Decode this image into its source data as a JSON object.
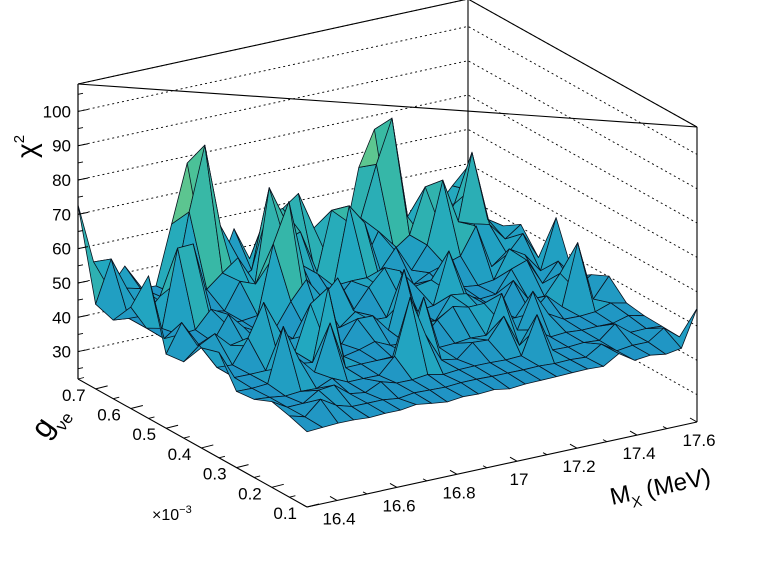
{
  "chart_data": {
    "type": "surface3d",
    "title": "",
    "colormap": [
      "#1f4fb8",
      "#1f86c8",
      "#22a8c0",
      "#3ebd9e",
      "#7fcf80",
      "#c0dc6a"
    ],
    "x_axis": {
      "label": "M",
      "label_sub": "X",
      "label_unit": "(MeV)",
      "range": [
        16.3,
        17.6
      ],
      "ticks": [
        16.4,
        16.6,
        16.8,
        17,
        17.2,
        17.4,
        17.6
      ],
      "tick_labels": [
        "16.4",
        "16.6",
        "16.8",
        "17",
        "17.2",
        "17.4",
        "17.6"
      ]
    },
    "y_axis": {
      "label": "g",
      "label_sub": "νe",
      "range": [
        0.1,
        0.75
      ],
      "ticks": [
        0.1,
        0.2,
        0.3,
        0.4,
        0.5,
        0.6,
        0.7
      ],
      "tick_labels": [
        "0.1",
        "0.2",
        "0.3",
        "0.4",
        "0.5",
        "0.6",
        "0.7"
      ],
      "exponent_label": "×10",
      "exponent_power": "−3"
    },
    "z_axis": {
      "label": "χ",
      "label_sup": "2",
      "range": [
        22,
        108
      ],
      "ticks": [
        30,
        40,
        50,
        60,
        70,
        80,
        90,
        100
      ],
      "tick_labels": [
        "30",
        "40",
        "50",
        "60",
        "70",
        "80",
        "90",
        "100"
      ]
    },
    "grid": true,
    "surface": {
      "nx": 26,
      "ny": 14,
      "base": 43,
      "min": 24,
      "max": 100,
      "peaks": [
        {
          "x": 16.65,
          "y": 0.72,
          "z": 100
        },
        {
          "x": 17.27,
          "y": 0.72,
          "z": 98
        },
        {
          "x": 16.75,
          "y": 0.55,
          "z": 82
        },
        {
          "x": 17.05,
          "y": 0.62,
          "z": 78
        },
        {
          "x": 17.35,
          "y": 0.62,
          "z": 75
        },
        {
          "x": 17.5,
          "y": 0.65,
          "z": 70
        },
        {
          "x": 16.9,
          "y": 0.68,
          "z": 74
        },
        {
          "x": 16.5,
          "y": 0.6,
          "z": 66
        },
        {
          "x": 16.35,
          "y": 0.72,
          "z": 60
        }
      ]
    }
  }
}
